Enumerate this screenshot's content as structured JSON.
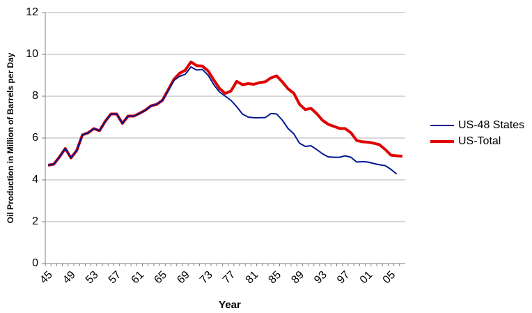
{
  "chart_data": {
    "type": "line",
    "x_label": "Year",
    "y_label": "Oil Production in Million of Barrels per Day",
    "categories": [
      "45",
      null,
      null,
      null,
      "49",
      null,
      null,
      null,
      "53",
      null,
      null,
      null,
      "57",
      null,
      null,
      null,
      "61",
      null,
      null,
      null,
      "65",
      null,
      null,
      null,
      "69",
      null,
      null,
      null,
      "73",
      null,
      null,
      null,
      "77",
      null,
      null,
      null,
      "81",
      null,
      null,
      null,
      "85",
      null,
      null,
      null,
      "89",
      null,
      null,
      null,
      "93",
      null,
      null,
      null,
      "97",
      null,
      null,
      null,
      "01",
      null,
      null,
      null,
      "05",
      null,
      null
    ],
    "series": [
      {
        "name": "US-48 States",
        "color": "#00188f",
        "values": [
          4.7,
          4.75,
          5.1,
          5.5,
          5.05,
          5.4,
          6.15,
          6.25,
          6.45,
          6.35,
          6.8,
          7.15,
          7.15,
          6.7,
          7.05,
          7.05,
          7.18,
          7.33,
          7.54,
          7.61,
          7.8,
          8.25,
          8.75,
          8.95,
          9.05,
          9.4,
          9.25,
          9.28,
          9.0,
          8.55,
          8.2,
          8.0,
          7.8,
          7.5,
          7.15,
          7.0,
          6.97,
          6.97,
          6.98,
          7.17,
          7.15,
          6.85,
          6.45,
          6.2,
          5.75,
          5.6,
          5.63,
          5.45,
          5.25,
          5.1,
          5.08,
          5.08,
          5.15,
          5.08,
          4.85,
          4.87,
          4.85,
          4.78,
          4.72,
          4.68,
          4.5,
          4.28,
          null
        ]
      },
      {
        "name": "US-Total",
        "color": "#e00000",
        "values": [
          4.7,
          4.75,
          5.1,
          5.5,
          5.05,
          5.4,
          6.15,
          6.25,
          6.45,
          6.35,
          6.8,
          7.15,
          7.15,
          6.7,
          7.05,
          7.05,
          7.18,
          7.33,
          7.54,
          7.61,
          7.8,
          8.3,
          8.8,
          9.1,
          9.24,
          9.64,
          9.46,
          9.44,
          9.21,
          8.77,
          8.37,
          8.13,
          8.25,
          8.71,
          8.55,
          8.6,
          8.57,
          8.65,
          8.69,
          8.88,
          8.97,
          8.68,
          8.35,
          8.14,
          7.61,
          7.36,
          7.42,
          7.17,
          6.85,
          6.66,
          6.56,
          6.46,
          6.45,
          6.25,
          5.88,
          5.82,
          5.8,
          5.75,
          5.68,
          5.45,
          5.18,
          5.15,
          5.13
        ]
      }
    ],
    "ylim": [
      0,
      12
    ],
    "yticks": [
      0,
      2,
      4,
      6,
      8,
      10,
      12
    ],
    "grid": true,
    "legend": "right"
  }
}
